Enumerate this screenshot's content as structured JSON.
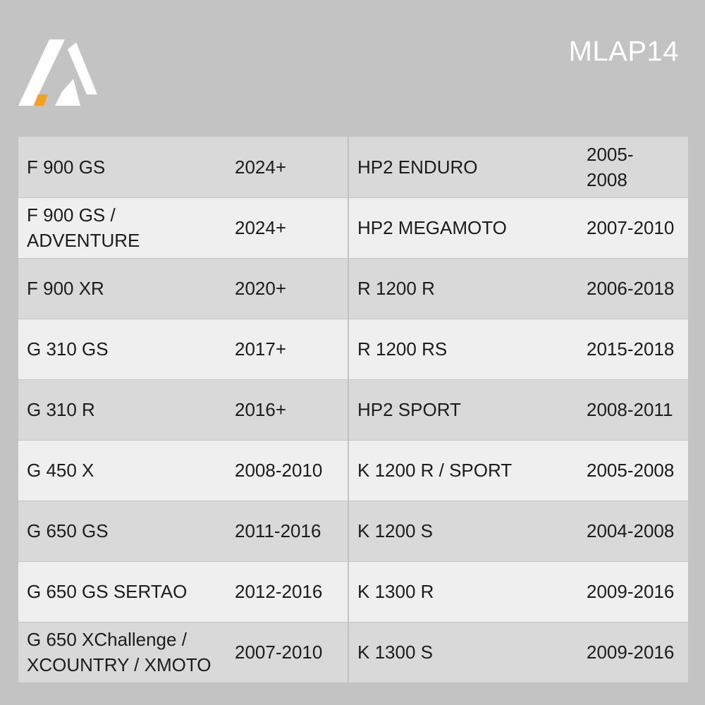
{
  "brand": {
    "logo_icon": "stylized-A-logo-icon",
    "accent_color": "#f5a020",
    "product_code": "MLAP14"
  },
  "fitment": {
    "rows": [
      {
        "model_a": "F 900 GS",
        "years_a": "2024+",
        "model_b": "HP2 ENDURO",
        "years_b": "2005-\n2008"
      },
      {
        "model_a": "F 900 GS / ADVENTURE",
        "years_a": "2024+",
        "model_b": "HP2 MEGAMOTO",
        "years_b": "2007-2010"
      },
      {
        "model_a": "F 900 XR",
        "years_a": "2020+",
        "model_b": "R 1200 R",
        "years_b": "2006-2018"
      },
      {
        "model_a": "G 310 GS",
        "years_a": "2017+",
        "model_b": "R 1200 RS",
        "years_b": "2015-2018"
      },
      {
        "model_a": "G 310 R",
        "years_a": "2016+",
        "model_b": "HP2 SPORT",
        "years_b": "2008-2011"
      },
      {
        "model_a": "G 450 X",
        "years_a": "2008-2010",
        "model_b": "K 1200 R / SPORT",
        "years_b": "2005-2008"
      },
      {
        "model_a": "G 650 GS",
        "years_a": "2011-2016",
        "model_b": "K 1200 S",
        "years_b": "2004-2008"
      },
      {
        "model_a": "G 650 GS SERTAO",
        "years_a": "2012-2016",
        "model_b": "K 1300 R",
        "years_b": "2009-2016"
      },
      {
        "model_a": "G 650 XChallenge /\nXCOUNTRY / XMOTO",
        "years_a": "2007-2010",
        "model_b": "K 1300 S",
        "years_b": "2009-2016"
      }
    ]
  }
}
